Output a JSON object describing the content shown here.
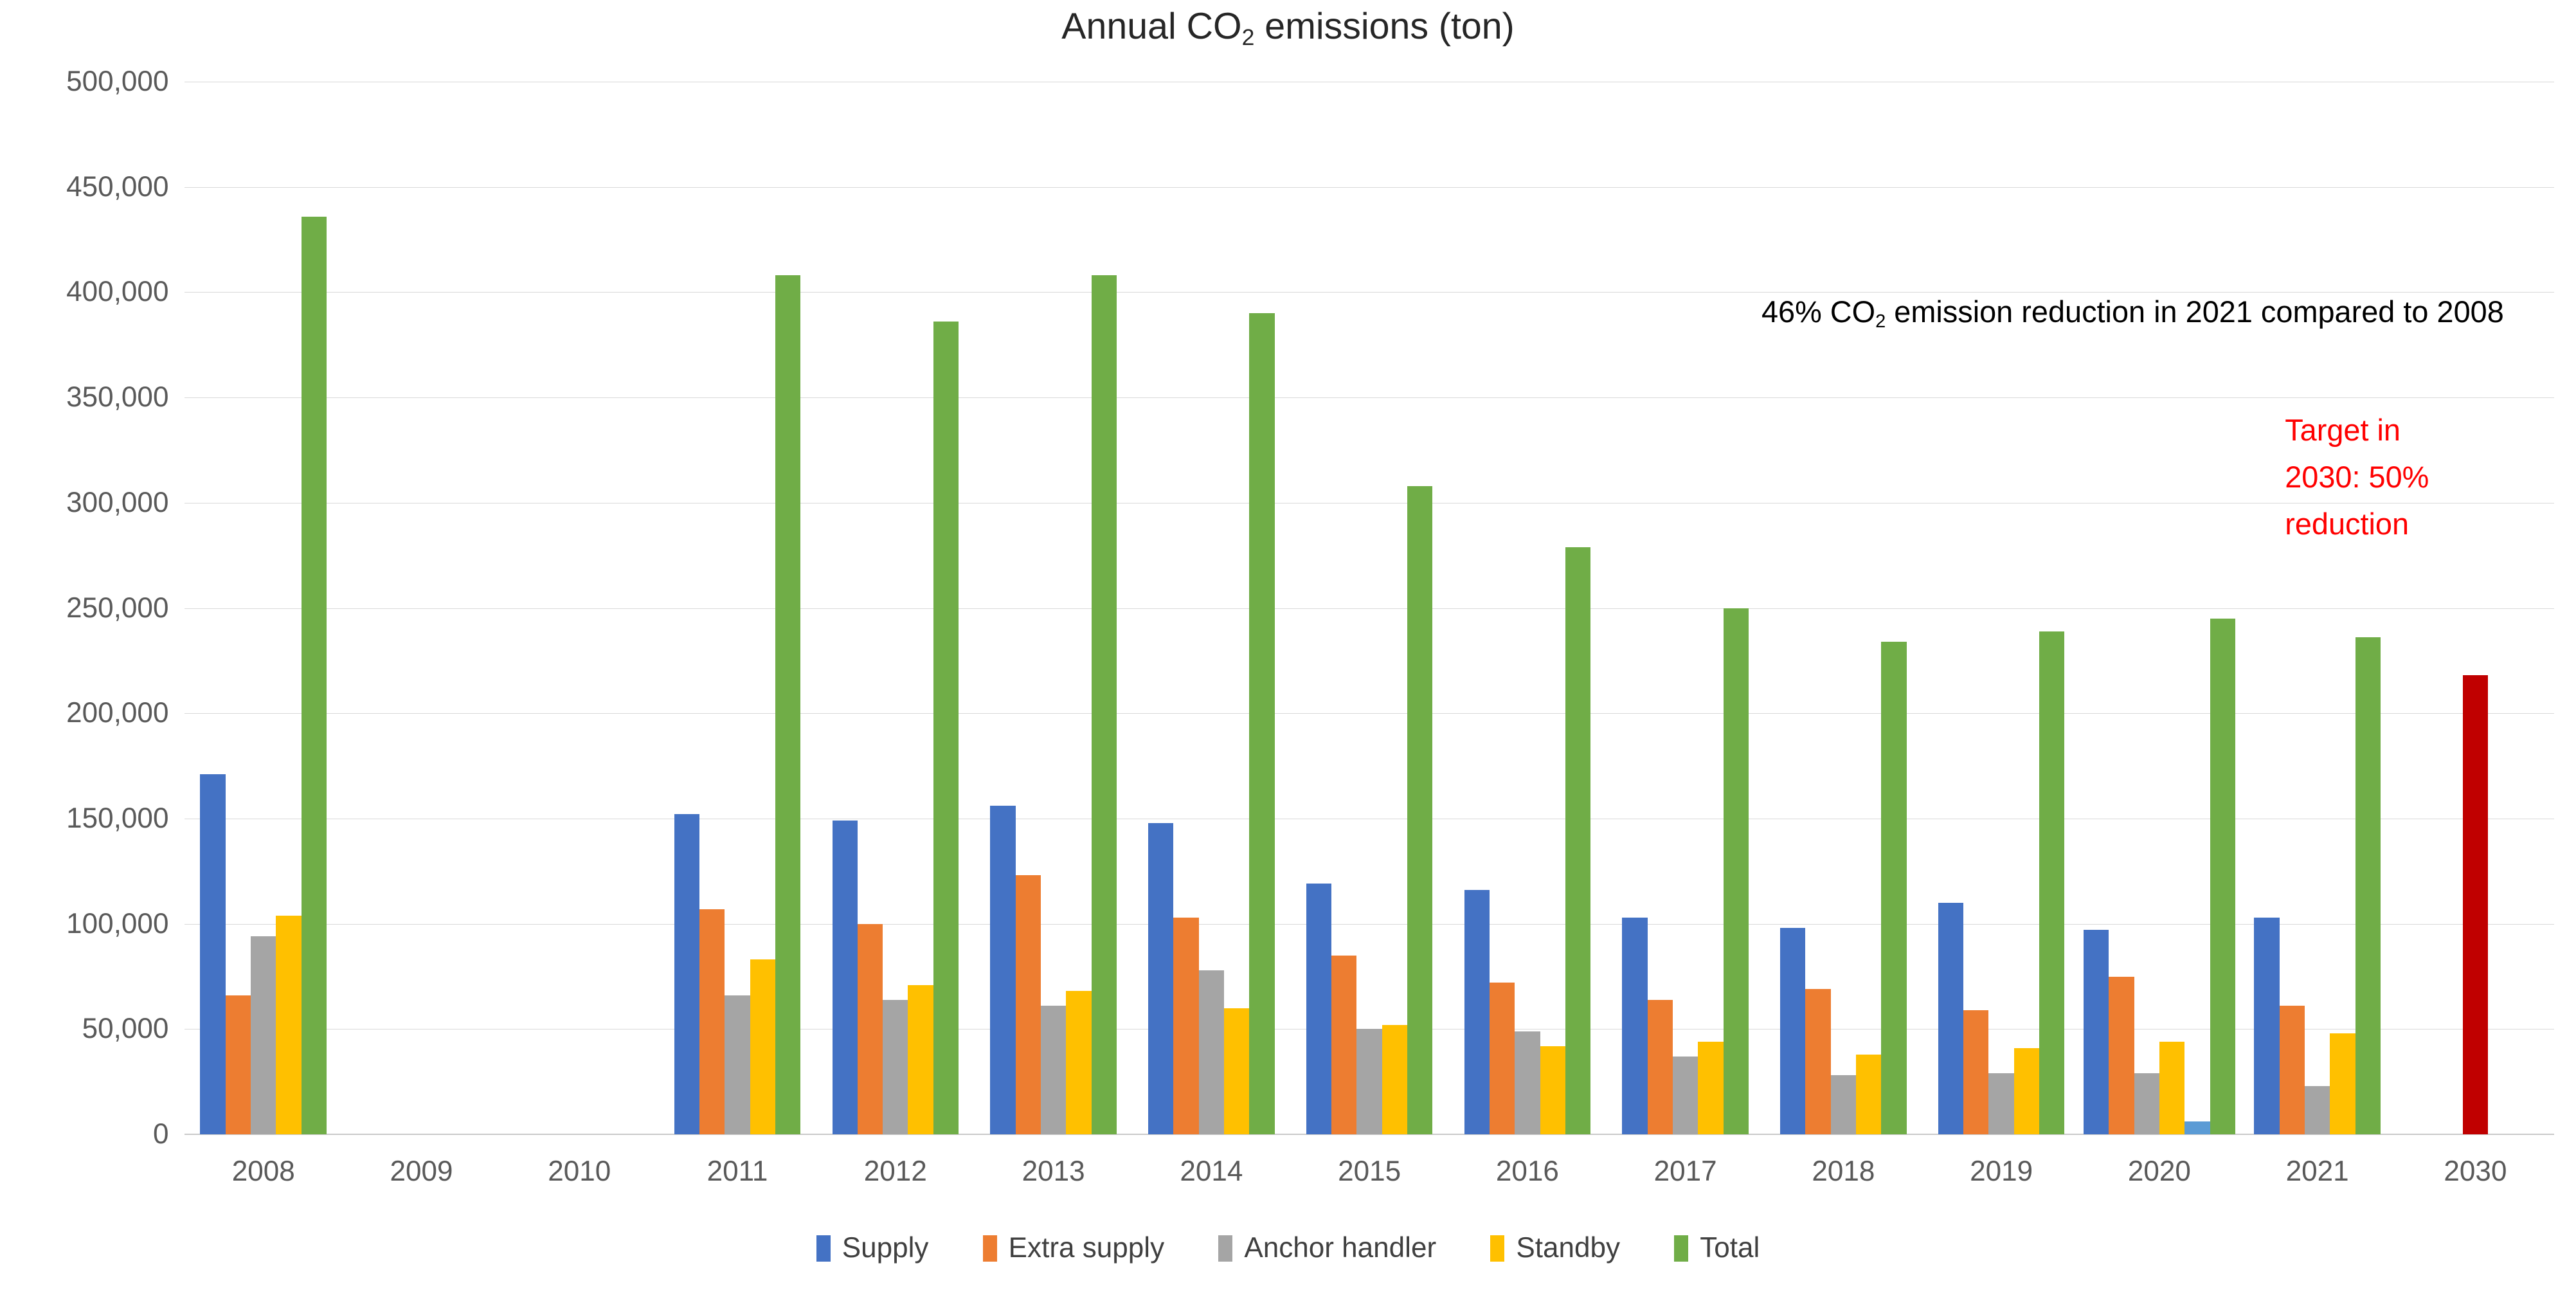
{
  "texts": {
    "title": {
      "pre": "Annual CO",
      "sub": "2",
      "post": " emissions (ton)"
    },
    "annotation": {
      "pre": "46% CO",
      "sub": "2",
      "post": " emission reduction in 2021 compared to 2008"
    },
    "target": {
      "line1": "Target in",
      "line2": "2030: 50%",
      "line3": "reduction"
    }
  },
  "colors": {
    "supply": "#4472C4",
    "extra_supply": "#ED7D31",
    "anchor_handler": "#A5A5A5",
    "standby": "#FFC000",
    "total": "#70AD47",
    "unlabeled_light_blue": "#5B9BD5",
    "target_2030": "#C00000",
    "gridline": "#D9D9D9",
    "axis_text": "#595959",
    "annotation_text": "#000000",
    "target_text": "#FF0000"
  },
  "chart_data": {
    "type": "bar",
    "title": "Annual CO2 emissions (ton)",
    "annotation": "46% CO2 emission reduction in 2021 compared to 2008",
    "target_note": "Target in 2030: 50% reduction",
    "ylim": [
      0,
      500000
    ],
    "ytick_step": 50000,
    "grid": true,
    "legend_position": "bottom",
    "categories": [
      "2008",
      "2009",
      "2010",
      "2011",
      "2012",
      "2013",
      "2014",
      "2015",
      "2016",
      "2017",
      "2018",
      "2019",
      "2020",
      "2021",
      "2030"
    ],
    "series": [
      {
        "name": "Supply",
        "color": "#4472C4",
        "in_legend": true,
        "values": [
          171000,
          null,
          null,
          152000,
          149000,
          156000,
          148000,
          119000,
          116000,
          103000,
          98000,
          110000,
          97000,
          103000,
          null
        ]
      },
      {
        "name": "Extra supply",
        "color": "#ED7D31",
        "in_legend": true,
        "values": [
          66000,
          null,
          null,
          107000,
          100000,
          123000,
          103000,
          85000,
          72000,
          64000,
          69000,
          59000,
          75000,
          61000,
          null
        ]
      },
      {
        "name": "Anchor handler",
        "color": "#A5A5A5",
        "in_legend": true,
        "values": [
          94000,
          null,
          null,
          66000,
          64000,
          61000,
          78000,
          50000,
          49000,
          37000,
          28000,
          29000,
          29000,
          23000,
          null
        ]
      },
      {
        "name": "Standby",
        "color": "#FFC000",
        "in_legend": true,
        "values": [
          104000,
          null,
          null,
          83000,
          71000,
          68000,
          60000,
          52000,
          42000,
          44000,
          38000,
          41000,
          44000,
          48000,
          null
        ]
      },
      {
        "name": "(unlabeled)",
        "color": "#5B9BD5",
        "in_legend": false,
        "values": [
          null,
          null,
          null,
          null,
          null,
          null,
          null,
          null,
          null,
          null,
          null,
          null,
          6000,
          null,
          null
        ]
      },
      {
        "name": "Total",
        "color": "#70AD47",
        "in_legend": true,
        "values": [
          436000,
          null,
          null,
          408000,
          386000,
          408000,
          390000,
          308000,
          279000,
          250000,
          234000,
          239000,
          245000,
          236000,
          null
        ]
      },
      {
        "name": "Target 2030",
        "color": "#C00000",
        "in_legend": false,
        "values": [
          null,
          null,
          null,
          null,
          null,
          null,
          null,
          null,
          null,
          null,
          null,
          null,
          null,
          null,
          218000
        ]
      }
    ]
  }
}
